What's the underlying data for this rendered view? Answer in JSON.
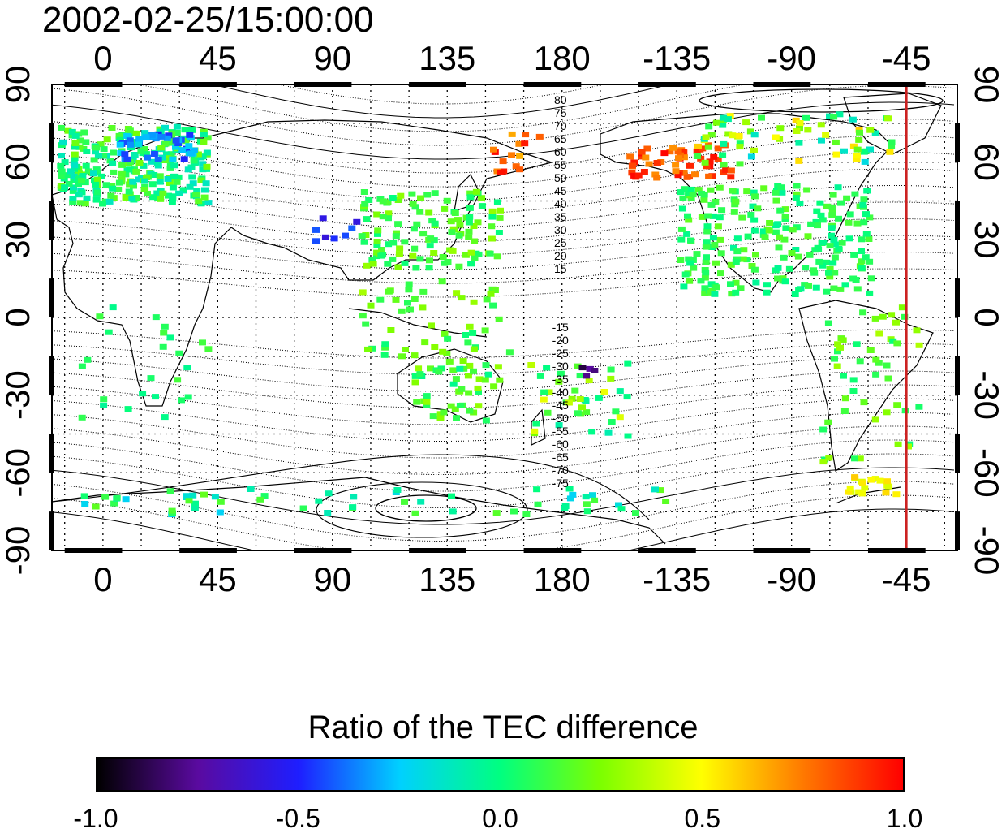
{
  "title": "2002-02-25/15:00:00",
  "map": {
    "type": "tec-ratio-map",
    "x_tick_labels": [
      "0",
      "45",
      "90",
      "135",
      "180",
      "-135",
      "-90",
      "-45"
    ],
    "x_tick_lons": [
      0,
      45,
      90,
      135,
      180,
      225,
      270,
      315
    ],
    "lon_range": [
      -20,
      335
    ],
    "lat_range": [
      -90,
      90
    ],
    "y_tick_labels_left": [
      "90",
      "60",
      "30",
      "0",
      "-30",
      "-60",
      "-90"
    ],
    "y_tick_labels_right": [
      "90",
      "60",
      "30",
      "0",
      "-30",
      "-60",
      "-90"
    ],
    "y_tick_lats": [
      90,
      60,
      30,
      0,
      -30,
      -60,
      -90
    ],
    "grid": "dotted every 15 degrees",
    "contour_labels_north": [
      "80",
      "75",
      "70",
      "65",
      "60",
      "55",
      "50",
      "45",
      "40",
      "35",
      "30",
      "25",
      "20",
      "15"
    ],
    "contour_labels_south": [
      "-15",
      "-20",
      "-25",
      "-30",
      "-35",
      "-40",
      "-45",
      "-50",
      "-55",
      "-60",
      "-65",
      "-70",
      "-75"
    ],
    "marker_line_lon": -45,
    "marker_line_color": "#cc2222"
  },
  "colorbar": {
    "title": "Ratio of the TEC difference",
    "min": -1.0,
    "max": 1.0,
    "ticks": [
      "-1.0",
      "-0.5",
      "0.0",
      "0.5",
      "1.0"
    ],
    "colors": [
      "#000000",
      "#5a0aa0",
      "#1e1eff",
      "#00d0ff",
      "#00ff80",
      "#7cff00",
      "#ffff00",
      "#ff7a00",
      "#ff0000"
    ]
  }
}
